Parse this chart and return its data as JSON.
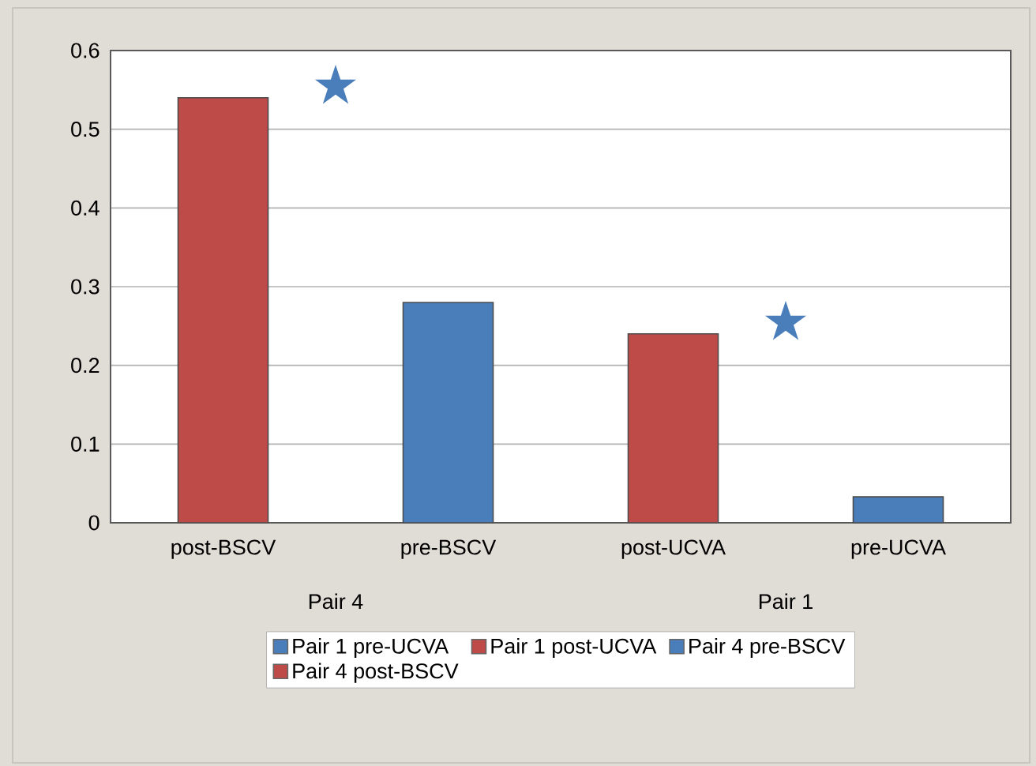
{
  "chart_data": {
    "type": "bar",
    "categories": [
      "post-BSCV",
      "pre-BSCV",
      "post-UCVA",
      "pre-UCVA"
    ],
    "series": [
      {
        "name": "Pair 1 pre-UCVA",
        "color": "#4a7ebb",
        "values": [
          null,
          null,
          null,
          0.033
        ]
      },
      {
        "name": "Pair 1 post-UCVA",
        "color": "#be4b48",
        "values": [
          null,
          null,
          0.24,
          null
        ]
      },
      {
        "name": "Pair 4 pre-BSCV",
        "color": "#4a7ebb",
        "values": [
          null,
          0.28,
          null,
          null
        ]
      },
      {
        "name": "Pair 4 post-BSCV",
        "color": "#be4b48",
        "values": [
          0.54,
          null,
          null,
          null
        ]
      }
    ],
    "ylim": [
      0,
      0.6
    ],
    "yticks": [
      0,
      0.1,
      0.2,
      0.3,
      0.4,
      0.5,
      0.6
    ],
    "grid": "y",
    "legend": "bottom",
    "annotations": [
      "Pair 4",
      "Pair 1",
      "★",
      "★"
    ]
  }
}
